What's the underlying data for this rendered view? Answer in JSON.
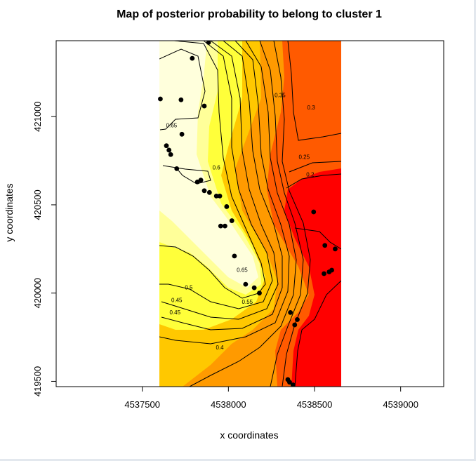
{
  "chart_data": {
    "type": "heatmap",
    "title": "Map of posterior probability to belong to cluster  1",
    "xlabel": "x coordinates",
    "ylabel": "y coordinates",
    "xlim": [
      4537000,
      4539250
    ],
    "ylim": [
      419470,
      421430
    ],
    "xticks": [
      4537500,
      4538000,
      4538500,
      4539000
    ],
    "yticks": [
      419500,
      420000,
      420500,
      421000
    ],
    "xtick_labels": [
      "4537500",
      "4538000",
      "4538500",
      "4539000"
    ],
    "ytick_labels": [
      "419500",
      "420000",
      "420500",
      "421000"
    ],
    "data_extent": {
      "x": [
        4537600,
        4538640
      ],
      "y": [
        419480,
        421420
      ]
    },
    "color_scale": [
      "#ff0000",
      "#ff5a00",
      "#ff9a00",
      "#ffc800",
      "#ffff3a",
      "#ffff99",
      "#ffffdc"
    ],
    "contour_labels": [
      {
        "text": "0.65",
        "x": 4537670,
        "y": 420940
      },
      {
        "text": "0.6",
        "x": 4537930,
        "y": 420700
      },
      {
        "text": "0.35",
        "x": 4538300,
        "y": 421110
      },
      {
        "text": "0.3",
        "x": 4538480,
        "y": 421040
      },
      {
        "text": "0.25",
        "x": 4538440,
        "y": 420760
      },
      {
        "text": "0.2",
        "x": 4538475,
        "y": 420660
      },
      {
        "text": "0.65",
        "x": 4538080,
        "y": 420120
      },
      {
        "text": "0.55",
        "x": 4538110,
        "y": 419940
      },
      {
        "text": "0.5",
        "x": 4537770,
        "y": 420020
      },
      {
        "text": "0.45",
        "x": 4537700,
        "y": 419950
      },
      {
        "text": "0.45",
        "x": 4537690,
        "y": 419880
      },
      {
        "text": "0.4",
        "x": 4537950,
        "y": 419680
      }
    ],
    "points": [
      {
        "x": 4537605,
        "y": 421100
      },
      {
        "x": 4537725,
        "y": 421095
      },
      {
        "x": 4537860,
        "y": 421060
      },
      {
        "x": 4537790,
        "y": 421330
      },
      {
        "x": 4537885,
        "y": 421420
      },
      {
        "x": 4537730,
        "y": 420900
      },
      {
        "x": 4537640,
        "y": 420835
      },
      {
        "x": 4537655,
        "y": 420810
      },
      {
        "x": 4537665,
        "y": 420785
      },
      {
        "x": 4537700,
        "y": 420705
      },
      {
        "x": 4537820,
        "y": 420630
      },
      {
        "x": 4537840,
        "y": 420640
      },
      {
        "x": 4537860,
        "y": 420580
      },
      {
        "x": 4537890,
        "y": 420570
      },
      {
        "x": 4537930,
        "y": 420550
      },
      {
        "x": 4537950,
        "y": 420550
      },
      {
        "x": 4537990,
        "y": 420490
      },
      {
        "x": 4537955,
        "y": 420380
      },
      {
        "x": 4537980,
        "y": 420380
      },
      {
        "x": 4538035,
        "y": 420210
      },
      {
        "x": 4538020,
        "y": 420410
      },
      {
        "x": 4538100,
        "y": 420050
      },
      {
        "x": 4538150,
        "y": 420030
      },
      {
        "x": 4538180,
        "y": 420000
      },
      {
        "x": 4538360,
        "y": 419890
      },
      {
        "x": 4538400,
        "y": 419850
      },
      {
        "x": 4538385,
        "y": 419820
      },
      {
        "x": 4538495,
        "y": 420460
      },
      {
        "x": 4538560,
        "y": 420270
      },
      {
        "x": 4538620,
        "y": 420250
      },
      {
        "x": 4538585,
        "y": 420120
      },
      {
        "x": 4538555,
        "y": 420110
      },
      {
        "x": 4538600,
        "y": 420130
      },
      {
        "x": 4538345,
        "y": 419510
      },
      {
        "x": 4538355,
        "y": 419495
      },
      {
        "x": 4538375,
        "y": 419480
      }
    ]
  }
}
